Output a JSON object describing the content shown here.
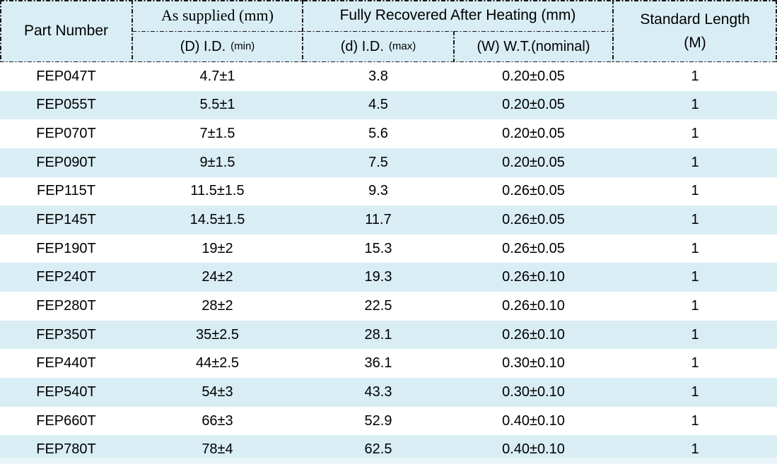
{
  "colors": {
    "band_blue": "#d9edf4",
    "pale_bottom_strip": "#e9f4f9",
    "border": "#1a1a1a",
    "text": "#000000"
  },
  "table": {
    "header": {
      "part_number": "Part Number",
      "as_supplied": "As supplied (mm)",
      "fully_recovered": "Fully Recovered After Heating (mm)",
      "standard_length_line1": "Standard Length",
      "standard_length_line2": "(M)",
      "sub_supplied_main": "(D) I.D.",
      "sub_supplied_note": "(min)",
      "sub_recovered_id_main": "(d) I.D.",
      "sub_recovered_id_note": "(max)",
      "sub_recovered_wt_main": "(W) W.T.(nominal)",
      "sub_recovered_wt_note": ""
    },
    "rows": [
      {
        "part": "FEP047T",
        "supplied_id": "4.7±1",
        "recovered_id": "3.8",
        "recovered_wt": "0.20±0.05",
        "length": "1"
      },
      {
        "part": "FEP055T",
        "supplied_id": "5.5±1",
        "recovered_id": "4.5",
        "recovered_wt": "0.20±0.05",
        "length": "1"
      },
      {
        "part": "FEP070T",
        "supplied_id": "7±1.5",
        "recovered_id": "5.6",
        "recovered_wt": "0.20±0.05",
        "length": "1"
      },
      {
        "part": "FEP090T",
        "supplied_id": "9±1.5",
        "recovered_id": "7.5",
        "recovered_wt": "0.20±0.05",
        "length": "1"
      },
      {
        "part": "FEP115T",
        "supplied_id": "11.5±1.5",
        "recovered_id": "9.3",
        "recovered_wt": "0.26±0.05",
        "length": "1"
      },
      {
        "part": "FEP145T",
        "supplied_id": "14.5±1.5",
        "recovered_id": "11.7",
        "recovered_wt": "0.26±0.05",
        "length": "1"
      },
      {
        "part": "FEP190T",
        "supplied_id": "19±2",
        "recovered_id": "15.3",
        "recovered_wt": "0.26±0.05",
        "length": "1"
      },
      {
        "part": "FEP240T",
        "supplied_id": "24±2",
        "recovered_id": "19.3",
        "recovered_wt": "0.26±0.10",
        "length": "1"
      },
      {
        "part": "FEP280T",
        "supplied_id": "28±2",
        "recovered_id": "22.5",
        "recovered_wt": "0.26±0.10",
        "length": "1"
      },
      {
        "part": "FEP350T",
        "supplied_id": "35±2.5",
        "recovered_id": "28.1",
        "recovered_wt": "0.26±0.10",
        "length": "1"
      },
      {
        "part": "FEP440T",
        "supplied_id": "44±2.5",
        "recovered_id": "36.1",
        "recovered_wt": "0.30±0.10",
        "length": "1"
      },
      {
        "part": "FEP540T",
        "supplied_id": "54±3",
        "recovered_id": "43.3",
        "recovered_wt": "0.30±0.10",
        "length": "1"
      },
      {
        "part": "FEP660T",
        "supplied_id": "66±3",
        "recovered_id": "52.9",
        "recovered_wt": "0.40±0.10",
        "length": "1"
      },
      {
        "part": "FEP780T",
        "supplied_id": "78±4",
        "recovered_id": "62.5",
        "recovered_wt": "0.40±0.10",
        "length": "1"
      }
    ]
  }
}
